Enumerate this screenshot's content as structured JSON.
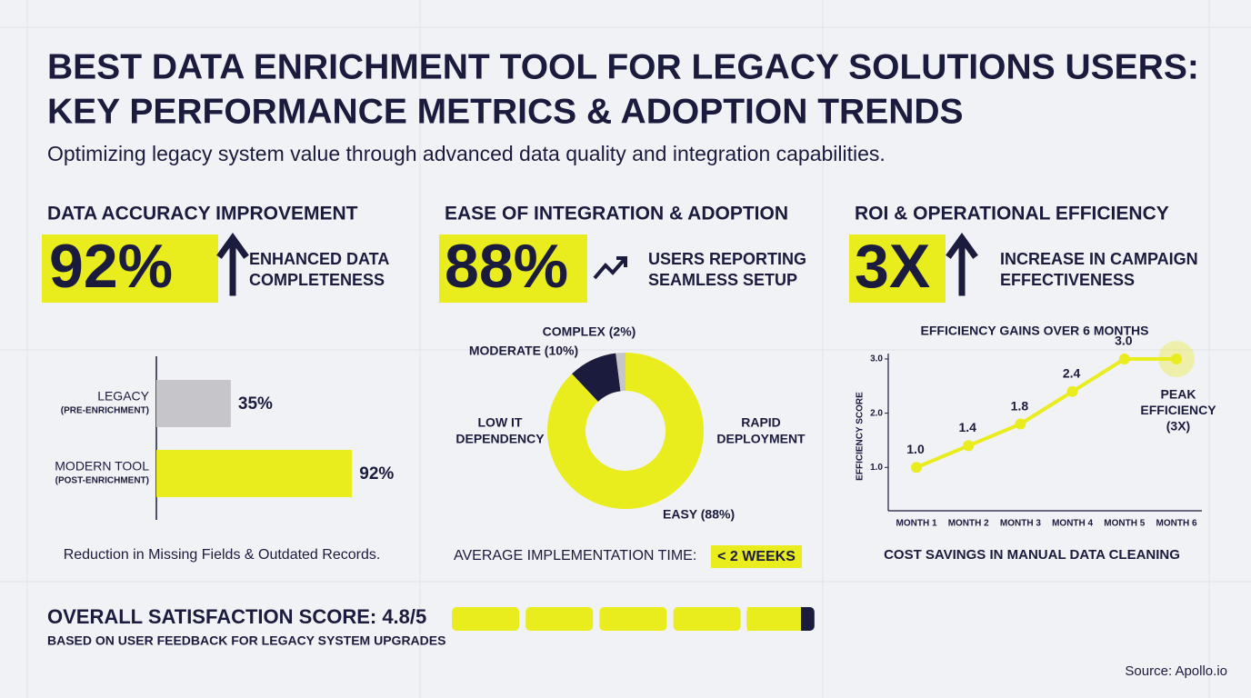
{
  "header": {
    "title_lines": [
      "BEST DATA ENRICHMENT TOOL FOR LEGACY SOLUTIONS USERS:",
      "KEY PERFORMANCE METRICS & ADOPTION TRENDS"
    ],
    "subtitle": "Optimizing legacy system value through advanced data quality and integration capabilities."
  },
  "panels": [
    {
      "heading": "DATA ACCURACY IMPROVEMENT",
      "kpi": "92%",
      "kpi_text_lines": [
        "ENHANCED DATA",
        "COMPLETENESS"
      ],
      "caption": "Reduction in Missing Fields & Outdated Records."
    },
    {
      "heading": "EASE OF INTEGRATION & ADOPTION",
      "kpi": "88%",
      "kpi_text_lines": [
        "USERS REPORTING",
        "SEAMLESS SETUP"
      ],
      "caption": "AVERAGE IMPLEMENTATION TIME:",
      "caption_highlight": "< 2 WEEKS"
    },
    {
      "heading": "ROI & OPERATIONAL EFFICIENCY",
      "kpi": "3X",
      "kpi_text_lines": [
        "INCREASE IN CAMPAIGN",
        "EFFECTIVENESS"
      ],
      "caption": "COST SAVINGS IN MANUAL DATA CLEANING"
    }
  ],
  "chart_data": [
    {
      "type": "hbar",
      "categories": [
        "LEGACY",
        "MODERN TOOL"
      ],
      "category_sublabels": [
        "(PRE-ENRICHMENT)",
        "(POST-ENRICHMENT)"
      ],
      "values": [
        35,
        92
      ],
      "value_labels": [
        "35%",
        "92%"
      ],
      "colors": [
        "#c6c6ca",
        "#e9ec1d"
      ],
      "xlim": [
        0,
        100
      ]
    },
    {
      "type": "donut",
      "categories": [
        "EASY",
        "MODERATE",
        "COMPLEX"
      ],
      "values": [
        88,
        10,
        2
      ],
      "value_labels": [
        "EASY (88%)",
        "MODERATE (10%)",
        "COMPLEX (2%)"
      ],
      "colors": [
        "#e9ec1d",
        "#1b1b3d",
        "#c6c6ca"
      ],
      "annotations": [
        [
          "LOW IT",
          "DEPENDENCY"
        ],
        [
          "RAPID",
          "DEPLOYMENT"
        ]
      ]
    },
    {
      "type": "line",
      "title": "EFFICIENCY GAINS OVER 6 MONTHS",
      "ylabel": "EFFICIENCY SCORE",
      "categories": [
        "MONTH 1",
        "MONTH 2",
        "MONTH 3",
        "MONTH 4",
        "MONTH 5",
        "MONTH 6"
      ],
      "values": [
        1.0,
        1.4,
        1.8,
        2.4,
        3.0,
        3.0
      ],
      "value_labels": [
        "1.0",
        "1.4",
        "1.8",
        "2.4",
        "3.0",
        null
      ],
      "color": "#e9ec1d",
      "ylim": [
        0.2,
        3.1
      ],
      "yticks": [
        {
          "value": 1,
          "label": "1.0"
        },
        {
          "value": 2,
          "label": "2.0"
        },
        {
          "value": 3,
          "label": "3.0"
        }
      ],
      "annotation_lines": [
        "PEAK",
        "EFFICIENCY",
        "(3X)"
      ]
    },
    {
      "type": "rating",
      "title": "OVERALL SATISFACTION SCORE: 4.8/5",
      "subtitle": "BASED ON USER FEEDBACK FOR LEGACY SYSTEM UPGRADES",
      "value": 4.8,
      "xlim": [
        0,
        5
      ],
      "color": "#e9ec1d",
      "rest_color": "#1b1b3d"
    }
  ],
  "footer": {
    "source": "Source: Apollo.io"
  }
}
